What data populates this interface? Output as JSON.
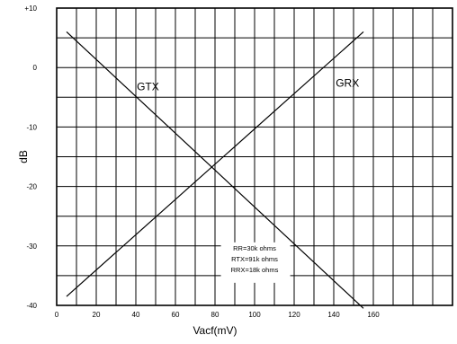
{
  "chart_data": {
    "type": "line",
    "xlabel": "Vacf(mV)",
    "ylabel": "dB",
    "xlim": [
      0,
      200
    ],
    "ylim": [
      -40,
      10
    ],
    "x_ticks": [
      "0",
      "20",
      "40",
      "60",
      "80",
      "100",
      "120",
      "140",
      "160"
    ],
    "y_ticks": [
      "+10",
      "0",
      "-10",
      "-20",
      "-30",
      "-40"
    ],
    "grid": true,
    "series": [
      {
        "name": "GTX",
        "x": [
          5,
          155
        ],
        "y": [
          6,
          -40.5
        ]
      },
      {
        "name": "GRX",
        "x": [
          5,
          155
        ],
        "y": [
          -38.5,
          6
        ]
      }
    ],
    "annotations": [
      "RR=30k  ohms",
      "RTX=91k  ohms",
      "RRX=18k  ohms"
    ]
  }
}
